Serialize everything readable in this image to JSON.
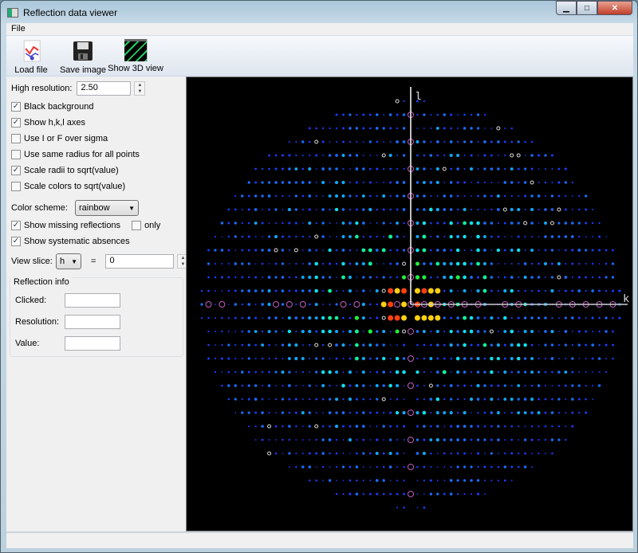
{
  "window": {
    "title": "Reflection data viewer",
    "minimize": "▁",
    "maximize": "□",
    "close": "✕"
  },
  "menu": {
    "file": "File"
  },
  "toolbar": {
    "load": "Load file",
    "save": "Save image",
    "show3d": "Show 3D view"
  },
  "controls": {
    "high_resolution_label": "High resolution:",
    "high_resolution_value": "2.50",
    "checkboxes": [
      {
        "label": "Black background",
        "checked": true
      },
      {
        "label": "Show h,k,l axes",
        "checked": true
      },
      {
        "label": "Use I or F over sigma",
        "checked": false
      },
      {
        "label": "Use same radius for all points",
        "checked": false
      },
      {
        "label": "Scale radii to sqrt(value)",
        "checked": true
      },
      {
        "label": "Scale colors to sqrt(value)",
        "checked": false
      }
    ],
    "color_scheme_label": "Color scheme:",
    "color_scheme_value": "rainbow",
    "show_missing": {
      "label": "Show missing reflections",
      "checked": true
    },
    "only": {
      "label": "only",
      "checked": false
    },
    "show_absences": {
      "label": "Show systematic absences",
      "checked": true
    },
    "view_slice_label": "View slice:",
    "view_slice_axis": "h",
    "equals": "=",
    "view_slice_value": "0"
  },
  "reflection_info": {
    "title": "Reflection info",
    "clicked_label": "Clicked:",
    "resolution_label": "Resolution:",
    "value_label": "Value:",
    "clicked": "",
    "resolution": "",
    "value": ""
  },
  "plot": {
    "vertical_axis": "l",
    "horizontal_axis": "k",
    "background": "#000000",
    "axis_color": "#ffffff",
    "missing_color": "#c060c0"
  }
}
